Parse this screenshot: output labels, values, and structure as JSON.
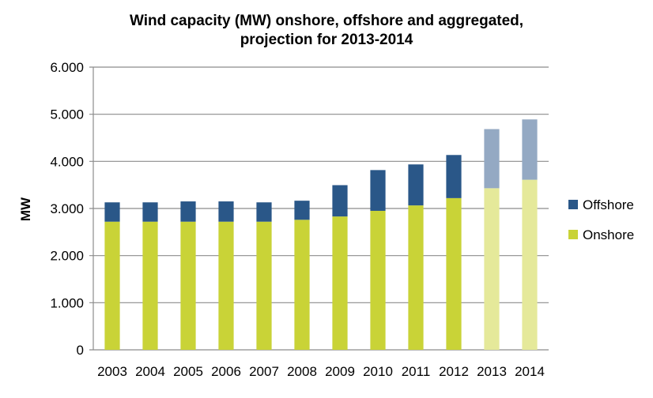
{
  "chart_data": {
    "type": "bar",
    "stacked": true,
    "title": [
      "Wind capacity (MW) onshore, offshore and aggregated,",
      "projection for 2013-2014"
    ],
    "xlabel": "",
    "ylabel": "MW",
    "ylim": [
      0,
      6000
    ],
    "yticks": [
      "0",
      "1.000",
      "2.000",
      "3.000",
      "4.000",
      "5.000",
      "6.000"
    ],
    "grid": true,
    "legend_position": "right",
    "categories": [
      "2003",
      "2004",
      "2005",
      "2006",
      "2007",
      "2008",
      "2009",
      "2010",
      "2011",
      "2012",
      "2013",
      "2014"
    ],
    "projected": [
      false,
      false,
      false,
      false,
      false,
      false,
      false,
      false,
      false,
      false,
      true,
      true
    ],
    "series": [
      {
        "name": "Onshore",
        "color": "#c9d337",
        "projection_color": "#e5e99a",
        "values": [
          2720,
          2720,
          2720,
          2720,
          2720,
          2760,
          2830,
          2950,
          3065,
          3220,
          3430,
          3610
        ]
      },
      {
        "name": "Offshore",
        "color": "#2a5788",
        "projection_color": "#94a9c3",
        "values": [
          410,
          410,
          430,
          430,
          410,
          405,
          665,
          865,
          870,
          915,
          1255,
          1280
        ]
      }
    ],
    "legend": [
      "Offshore",
      "Onshore"
    ]
  }
}
